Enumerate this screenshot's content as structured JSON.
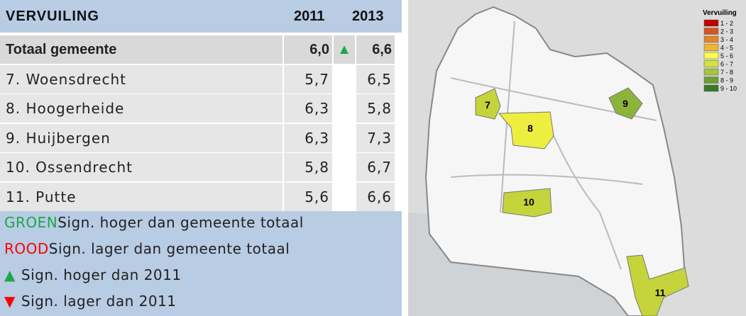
{
  "table": {
    "title": "VERVUILING",
    "columns": [
      "2011",
      "2013"
    ],
    "rows": [
      {
        "name": "Totaal gemeente",
        "a": "6,0",
        "trend": "▲",
        "b": "6,6"
      },
      {
        "name": "7. Woensdrecht",
        "a": "5,7",
        "b": "6,5"
      },
      {
        "name": "8. Hoogerheide",
        "a": "6,3",
        "b": "5,8"
      },
      {
        "name": "9. Huijbergen",
        "a": "6,3",
        "b": "7,3"
      },
      {
        "name": "10. Ossendrecht",
        "a": "5,8",
        "b": "6,7"
      },
      {
        "name": "11. Putte",
        "a": "5,6",
        "b": "6,6"
      }
    ]
  },
  "legend": [
    {
      "key": "GROEN",
      "color": "#1ea64a",
      "text": "Sign. hoger dan gemeente totaal"
    },
    {
      "key": "ROOD",
      "color": "#ff0000",
      "text": "Sign. lager dan gemeente totaal"
    },
    {
      "key": "▲",
      "color": "#1ea64a",
      "text": "Sign. hoger dan 2011"
    },
    {
      "key": "▼",
      "color": "#ff0000",
      "text": "Sign. lager dan 2011"
    }
  ],
  "map": {
    "legend_title": "Vervuiling",
    "classes": [
      {
        "label": "1 - 2",
        "color": "#c00000"
      },
      {
        "label": "2 - 3",
        "color": "#d4561e"
      },
      {
        "label": "3 - 4",
        "color": "#e48424"
      },
      {
        "label": "4 - 5",
        "color": "#f2b428"
      },
      {
        "label": "5 - 6",
        "color": "#ffff44"
      },
      {
        "label": "6 - 7",
        "color": "#d6e23e"
      },
      {
        "label": "7 - 8",
        "color": "#a6c43c"
      },
      {
        "label": "8 - 9",
        "color": "#6c9e36"
      },
      {
        "label": "9 - 10",
        "color": "#3a7a26"
      }
    ],
    "regions": [
      {
        "label": "7",
        "color": "#c4d43a"
      },
      {
        "label": "8",
        "color": "#eeee40"
      },
      {
        "label": "9",
        "color": "#8cb43c"
      },
      {
        "label": "10",
        "color": "#c4d43a"
      },
      {
        "label": "11",
        "color": "#c4d43a"
      }
    ]
  }
}
